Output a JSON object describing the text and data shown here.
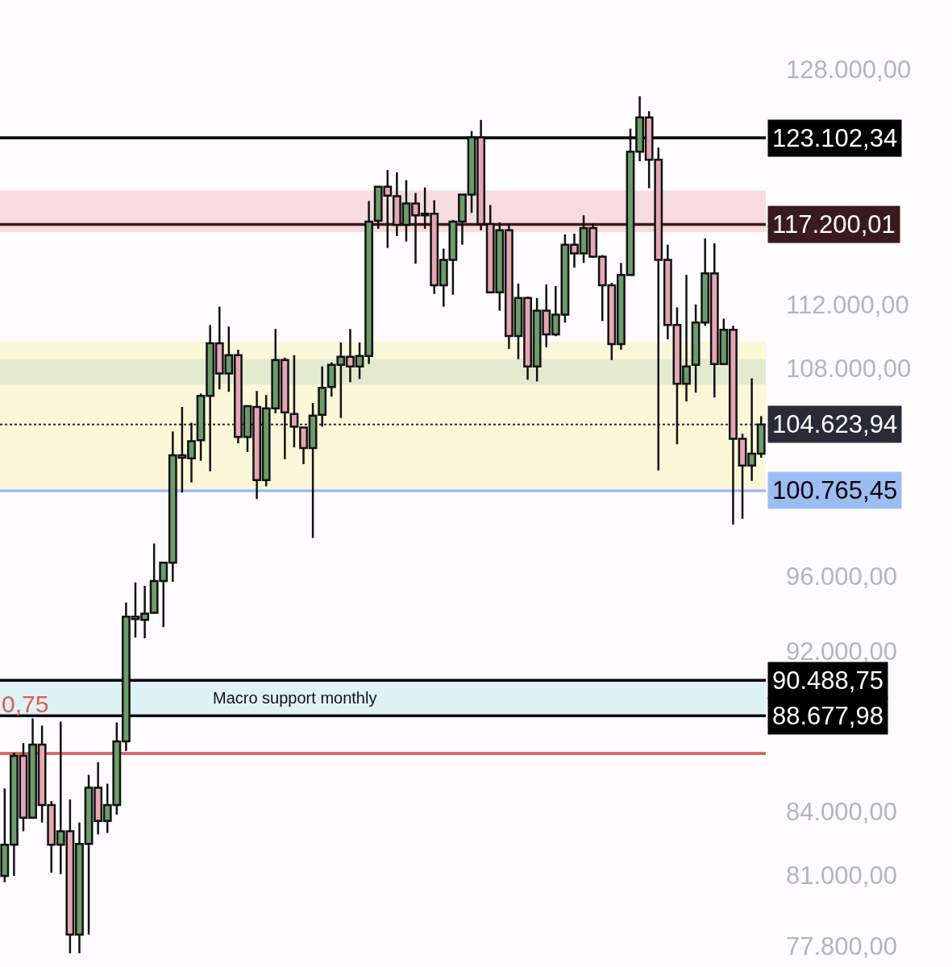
{
  "chart_data": {
    "type": "candlestick",
    "categories": [
      null,
      null,
      null,
      null,
      null,
      null,
      null,
      null,
      null,
      null,
      null,
      null,
      null,
      null,
      null,
      null,
      null,
      null,
      null,
      null,
      null,
      null,
      null,
      null,
      null,
      null,
      null,
      null,
      null,
      null,
      null,
      null,
      null,
      null,
      null,
      null,
      null,
      null,
      null,
      null,
      null,
      null,
      null,
      null,
      null,
      null,
      null,
      null,
      null,
      null,
      null,
      null,
      null,
      null,
      null,
      null,
      null,
      null,
      null,
      null,
      null,
      null,
      null,
      null,
      null,
      null,
      null,
      null,
      null,
      null,
      null,
      null,
      null,
      null,
      null,
      null,
      null,
      null,
      null,
      null,
      null,
      null
    ],
    "ohlc": [
      [
        80980,
        85100,
        80690,
        82430
      ],
      [
        82430,
        86850,
        80980,
        86690
      ],
      [
        86690,
        87320,
        83060,
        83700
      ],
      [
        83700,
        88550,
        83700,
        87240
      ],
      [
        87240,
        88190,
        83470,
        84300
      ],
      [
        84300,
        84490,
        81130,
        82430
      ],
      [
        82430,
        88390,
        81060,
        83060
      ],
      [
        83060,
        84570,
        77500,
        78330
      ],
      [
        78330,
        83470,
        77500,
        82460
      ],
      [
        82460,
        85760,
        78330,
        85140
      ],
      [
        85140,
        86380,
        82910,
        83550
      ],
      [
        83550,
        85330,
        82980,
        84300
      ],
      [
        84300,
        88350,
        83850,
        87400
      ],
      [
        87400,
        94570,
        86930,
        93810
      ],
      [
        93810,
        95650,
        92710,
        93680
      ],
      [
        93640,
        95470,
        92670,
        93980
      ],
      [
        94020,
        97790,
        94020,
        95730
      ],
      [
        95730,
        96730,
        93260,
        96730
      ],
      [
        96730,
        104210,
        95690,
        102810
      ],
      [
        102810,
        105670,
        100660,
        102670
      ],
      [
        102630,
        104730,
        101240,
        103640
      ],
      [
        103690,
        106480,
        102490,
        106340
      ],
      [
        106340,
        110700,
        101880,
        109560
      ],
      [
        109560,
        111860,
        106730,
        107700
      ],
      [
        107700,
        110600,
        106580,
        108820
      ],
      [
        108820,
        109160,
        103510,
        103880
      ],
      [
        103880,
        105720,
        103000,
        105720
      ],
      [
        105670,
        106630,
        100290,
        101380
      ],
      [
        101380,
        106390,
        101020,
        105580
      ],
      [
        105580,
        110450,
        105290,
        108520
      ],
      [
        108520,
        108670,
        102580,
        105340
      ],
      [
        105250,
        108820,
        103270,
        104490
      ],
      [
        104450,
        104450,
        102300,
        103230
      ],
      [
        103230,
        105910,
        98100,
        105150
      ],
      [
        105200,
        108130,
        104490,
        106820
      ],
      [
        106870,
        108380,
        106290,
        108230
      ],
      [
        108230,
        109610,
        105010,
        108720
      ],
      [
        108720,
        110450,
        107160,
        108130
      ],
      [
        108130,
        109610,
        107360,
        108770
      ],
      [
        108770,
        118770,
        108280,
        117390
      ],
      [
        117440,
        119740,
        116910,
        119740
      ],
      [
        119740,
        120880,
        115650,
        119140
      ],
      [
        119090,
        120720,
        116430,
        117180
      ],
      [
        117180,
        120180,
        116070,
        118610
      ],
      [
        118610,
        119310,
        114620,
        117810
      ],
      [
        117810,
        119690,
        116910,
        117920
      ],
      [
        117920,
        118820,
        112670,
        113230
      ],
      [
        113230,
        115600,
        111860,
        114870
      ],
      [
        114870,
        117500,
        112620,
        117390
      ],
      [
        117390,
        119200,
        115860,
        119200
      ],
      [
        119200,
        123580,
        117970,
        123140
      ],
      [
        123140,
        124360,
        116810,
        117230
      ],
      [
        117230,
        118500,
        112700,
        112770
      ],
      [
        112770,
        117340,
        111600,
        116810
      ],
      [
        116810,
        117230,
        109210,
        110010
      ],
      [
        110010,
        113330,
        108570,
        112410
      ],
      [
        112410,
        112510,
        107310,
        108130
      ],
      [
        108130,
        112410,
        107210,
        111600
      ],
      [
        111600,
        113280,
        109310,
        110110
      ],
      [
        110110,
        113170,
        110000,
        111350
      ],
      [
        111350,
        116540,
        110850,
        115860
      ],
      [
        115860,
        116590,
        114360,
        115290
      ],
      [
        115290,
        117810,
        114670,
        116960
      ],
      [
        116960,
        117280,
        115000,
        115080
      ],
      [
        115080,
        115180,
        110950,
        113230
      ],
      [
        113230,
        113380,
        108520,
        109510
      ],
      [
        109510,
        114670,
        109160,
        113890
      ],
      [
        113890,
        123750,
        113890,
        122140
      ],
      [
        122140,
        126050,
        121480,
        124530
      ],
      [
        124530,
        124980,
        119630,
        121580
      ],
      [
        121580,
        122420,
        101930,
        114870
      ],
      [
        114870,
        115860,
        109810,
        110700
      ],
      [
        110700,
        111810,
        103460,
        107070
      ],
      [
        107070,
        113890,
        106000,
        108130
      ],
      [
        108230,
        112000,
        106530,
        110850
      ],
      [
        110850,
        116280,
        110650,
        113990
      ],
      [
        113990,
        115960,
        106240,
        108280
      ],
      [
        108280,
        111100,
        108230,
        110400
      ],
      [
        110400,
        110650,
        98850,
        103780
      ],
      [
        103780,
        104070,
        99170,
        102210
      ],
      [
        102210,
        107400,
        101330,
        102900
      ],
      [
        102900,
        105120,
        102670,
        104620
      ]
    ],
    "colors": [
      "#6b9d6b",
      "#6b9d6b",
      "#e5a7b5",
      "#6b9d6b",
      "#e5a7b5",
      "#e5a7b5",
      "#6b9d6b",
      "#e5a7b5",
      "#6b9d6b",
      "#6b9d6b",
      "#e5a7b5",
      "#6b9d6b",
      "#6b9d6b",
      "#6b9d6b",
      "#e5a7b5",
      "#6b9d6b",
      "#6b9d6b",
      "#6b9d6b",
      "#6b9d6b",
      "#e5a7b5",
      "#6b9d6b",
      "#6b9d6b",
      "#6b9d6b",
      "#e5a7b5",
      "#6b9d6b",
      "#e5a7b5",
      "#6b9d6b",
      "#e5a7b5",
      "#6b9d6b",
      "#6b9d6b",
      "#e5a7b5",
      "#e5a7b5",
      "#e5a7b5",
      "#6b9d6b",
      "#6b9d6b",
      "#6b9d6b",
      "#6b9d6b",
      "#e5a7b5",
      "#6b9d6b",
      "#6b9d6b",
      "#6b9d6b",
      "#e5a7b5",
      "#e5a7b5",
      "#6b9d6b",
      "#e5a7b5",
      "#6b9d6b",
      "#e5a7b5",
      "#6b9d6b",
      "#6b9d6b",
      "#6b9d6b",
      "#6b9d6b",
      "#e5a7b5",
      "#e5a7b5",
      "#6b9d6b",
      "#e5a7b5",
      "#6b9d6b",
      "#e5a7b5",
      "#6b9d6b",
      "#e5a7b5",
      "#6b9d6b",
      "#6b9d6b",
      "#e5a7b5",
      "#6b9d6b",
      "#e5a7b5",
      "#e5a7b5",
      "#e5a7b5",
      "#6b9d6b",
      "#6b9d6b",
      "#6b9d6b",
      "#e5a7b5",
      "#e5a7b5",
      "#e5a7b5",
      "#e5a7b5",
      "#6b9d6b",
      "#6b9d6b",
      "#6b9d6b",
      "#e5a7b5",
      "#6b9d6b",
      "#e5a7b5",
      "#e5a7b5",
      "#6b9d6b",
      "#6b9d6b"
    ],
    "log": true,
    "ylim": [
      76900,
      133120
    ],
    "yticks": [
      {
        "value": 128000,
        "label": "128.000,00"
      },
      {
        "value": 112000,
        "label": "112.000,00"
      },
      {
        "value": 108000,
        "label": "108.000,00"
      },
      {
        "value": 96000,
        "label": "96.000,00"
      },
      {
        "value": 92000,
        "label": "92.000,00"
      },
      {
        "value": 84000,
        "label": "84.000,00"
      },
      {
        "value": 81000,
        "label": "81.000,00"
      },
      {
        "value": 77800,
        "label": "77.800,00"
      }
    ],
    "tick_labels": "y",
    "bands": [
      {
        "axis": "y",
        "from": 116700,
        "to": 119470,
        "color": "#f7dcdd"
      },
      {
        "axis": "y",
        "from": 100765,
        "to": 109660,
        "color": "#fcf7d8"
      },
      {
        "axis": "y",
        "from": 107020,
        "to": 108570,
        "color": "#e2ebcf"
      },
      {
        "axis": "y",
        "from": 88677.98,
        "to": 90488.75,
        "color": "#dff2f3",
        "label": "Macro support monthly"
      }
    ],
    "ref_lines": [
      {
        "axis": "y",
        "value": 123102.34,
        "label": "123.102,34",
        "color": "#000000",
        "line_style": "solid"
      },
      {
        "axis": "y",
        "value": 117200.01,
        "label": "117.200,01",
        "color": "#3a1a1a",
        "line_style": "solid"
      },
      {
        "axis": "y",
        "value": 104623.94,
        "label": "104.623,94",
        "color": "#2a2b36",
        "line_style": "dotted"
      },
      {
        "axis": "y",
        "value": 100765.45,
        "label": "100.765,45",
        "color": "#9dbcf2",
        "line_style": "solid"
      },
      {
        "axis": "y",
        "value": 90488.75,
        "label": "90.488,75",
        "color": "#000000",
        "line_style": "solid"
      },
      {
        "axis": "y",
        "value": 88677.98,
        "label": "88.677,98",
        "color": "#000000",
        "line_style": "solid"
      },
      {
        "axis": "y",
        "value": 86810,
        "color": "#d65a5a",
        "line_style": "solid"
      }
    ],
    "annotations": [
      "0,75"
    ]
  }
}
